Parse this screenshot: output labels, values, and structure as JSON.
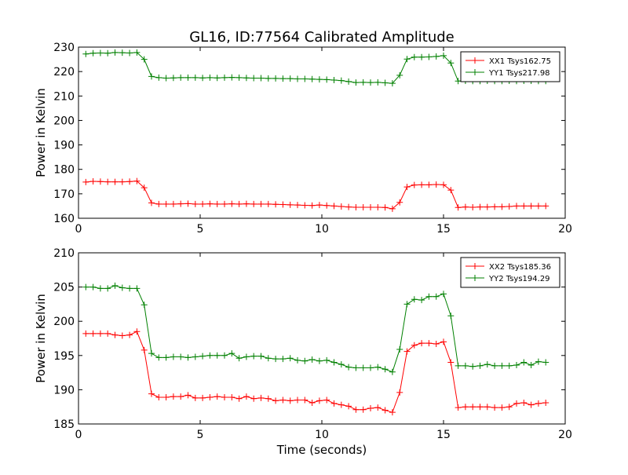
{
  "title": "GL16, ID:77564 Calibrated Amplitude",
  "xlabel": "Time (seconds)",
  "chart_data": [
    {
      "type": "line",
      "title": "GL16, ID:77564 Calibrated Amplitude",
      "xlabel": "",
      "ylabel": "Power in Kelvin",
      "xlim": [
        0,
        20
      ],
      "ylim": [
        160,
        230
      ],
      "xticks": [
        0,
        5,
        10,
        15,
        20
      ],
      "yticks": [
        160,
        170,
        180,
        190,
        200,
        210,
        220,
        230
      ],
      "grid": false,
      "legend_position": "top-right",
      "series": [
        {
          "name": "XX1 Tsys162.75",
          "color": "#ff0000",
          "x": [
            0.3,
            0.6,
            0.9,
            1.2,
            1.5,
            1.8,
            2.1,
            2.4,
            2.7,
            3.0,
            3.3,
            3.6,
            3.9,
            4.2,
            4.5,
            4.8,
            5.1,
            5.4,
            5.7,
            6.0,
            6.3,
            6.6,
            6.9,
            7.2,
            7.5,
            7.8,
            8.1,
            8.4,
            8.7,
            9.0,
            9.3,
            9.6,
            9.9,
            10.2,
            10.5,
            10.8,
            11.1,
            11.4,
            11.7,
            12.0,
            12.3,
            12.6,
            12.9,
            13.2,
            13.5,
            13.8,
            14.1,
            14.4,
            14.7,
            15.0,
            15.3,
            15.6,
            15.9,
            16.2,
            16.5,
            16.8,
            17.1,
            17.4,
            17.7,
            18.0,
            18.3,
            18.6,
            18.9,
            19.2
          ],
          "y": [
            174.8,
            175.1,
            175.0,
            174.9,
            174.9,
            174.9,
            175.0,
            175.2,
            172.5,
            166.3,
            165.8,
            165.8,
            165.8,
            165.9,
            166.0,
            165.8,
            165.8,
            165.9,
            165.8,
            165.8,
            165.9,
            165.8,
            165.9,
            165.8,
            165.8,
            165.8,
            165.7,
            165.6,
            165.5,
            165.4,
            165.3,
            165.2,
            165.4,
            165.2,
            165.0,
            164.8,
            164.6,
            164.5,
            164.5,
            164.5,
            164.5,
            164.4,
            163.9,
            166.5,
            172.8,
            173.6,
            173.7,
            173.7,
            173.8,
            173.7,
            171.5,
            164.4,
            164.6,
            164.5,
            164.6,
            164.6,
            164.7,
            164.7,
            164.8,
            165.0,
            165.0,
            165.0,
            165.0,
            165.0
          ]
        },
        {
          "name": "YY1 Tsys217.98",
          "color": "#008000",
          "x": [
            0.3,
            0.6,
            0.9,
            1.2,
            1.5,
            1.8,
            2.1,
            2.4,
            2.7,
            3.0,
            3.3,
            3.6,
            3.9,
            4.2,
            4.5,
            4.8,
            5.1,
            5.4,
            5.7,
            6.0,
            6.3,
            6.6,
            6.9,
            7.2,
            7.5,
            7.8,
            8.1,
            8.4,
            8.7,
            9.0,
            9.3,
            9.6,
            9.9,
            10.2,
            10.5,
            10.8,
            11.1,
            11.4,
            11.7,
            12.0,
            12.3,
            12.6,
            12.9,
            13.2,
            13.5,
            13.8,
            14.1,
            14.4,
            14.7,
            15.0,
            15.3,
            15.6,
            15.9,
            16.2,
            16.5,
            16.8,
            17.1,
            17.4,
            17.7,
            18.0,
            18.3,
            18.6,
            18.9,
            19.2
          ],
          "y": [
            227.2,
            227.5,
            227.6,
            227.5,
            227.8,
            227.7,
            227.6,
            227.8,
            225.0,
            218.0,
            217.5,
            217.3,
            217.4,
            217.5,
            217.5,
            217.5,
            217.4,
            217.5,
            217.4,
            217.5,
            217.6,
            217.5,
            217.4,
            217.3,
            217.3,
            217.2,
            217.2,
            217.1,
            217.1,
            217.0,
            217.0,
            216.9,
            216.8,
            216.7,
            216.5,
            216.3,
            215.9,
            215.5,
            215.6,
            215.5,
            215.6,
            215.4,
            215.2,
            218.5,
            225.1,
            225.9,
            225.9,
            226.0,
            226.2,
            226.5,
            223.5,
            216.1,
            216.2,
            216.1,
            216.1,
            216.2,
            216.1,
            216.1,
            216.2,
            216.1,
            216.2,
            216.2,
            216.1,
            216.1
          ]
        }
      ]
    },
    {
      "type": "line",
      "title": "",
      "xlabel": "Time (seconds)",
      "ylabel": "Power in Kelvin",
      "xlim": [
        0,
        20
      ],
      "ylim": [
        185,
        210
      ],
      "xticks": [
        0,
        5,
        10,
        15,
        20
      ],
      "yticks": [
        185,
        190,
        195,
        200,
        205,
        210
      ],
      "grid": false,
      "legend_position": "top-right",
      "series": [
        {
          "name": "XX2 Tsys185.36",
          "color": "#ff0000",
          "x": [
            0.3,
            0.6,
            0.9,
            1.2,
            1.5,
            1.8,
            2.1,
            2.4,
            2.7,
            3.0,
            3.3,
            3.6,
            3.9,
            4.2,
            4.5,
            4.8,
            5.1,
            5.4,
            5.7,
            6.0,
            6.3,
            6.6,
            6.9,
            7.2,
            7.5,
            7.8,
            8.1,
            8.4,
            8.7,
            9.0,
            9.3,
            9.6,
            9.9,
            10.2,
            10.5,
            10.8,
            11.1,
            11.4,
            11.7,
            12.0,
            12.3,
            12.6,
            12.9,
            13.2,
            13.5,
            13.8,
            14.1,
            14.4,
            14.7,
            15.0,
            15.3,
            15.6,
            15.9,
            16.2,
            16.5,
            16.8,
            17.1,
            17.4,
            17.7,
            18.0,
            18.3,
            18.6,
            18.9,
            19.2
          ],
          "y": [
            198.2,
            198.2,
            198.2,
            198.2,
            198.0,
            197.9,
            198.0,
            198.5,
            195.8,
            189.4,
            188.9,
            188.9,
            189.0,
            189.0,
            189.2,
            188.8,
            188.8,
            188.9,
            189.0,
            188.9,
            188.9,
            188.7,
            189.0,
            188.7,
            188.8,
            188.7,
            188.4,
            188.5,
            188.4,
            188.5,
            188.5,
            188.1,
            188.4,
            188.5,
            188.0,
            187.8,
            187.6,
            187.1,
            187.1,
            187.3,
            187.4,
            187.0,
            186.7,
            189.6,
            195.6,
            196.5,
            196.8,
            196.8,
            196.7,
            197.0,
            194.0,
            187.4,
            187.5,
            187.5,
            187.5,
            187.5,
            187.4,
            187.4,
            187.5,
            188.0,
            188.1,
            187.8,
            188.0,
            188.1
          ]
        },
        {
          "name": "YY2 Tsys194.29",
          "color": "#008000",
          "x": [
            0.3,
            0.6,
            0.9,
            1.2,
            1.5,
            1.8,
            2.1,
            2.4,
            2.7,
            3.0,
            3.3,
            3.6,
            3.9,
            4.2,
            4.5,
            4.8,
            5.1,
            5.4,
            5.7,
            6.0,
            6.3,
            6.6,
            6.9,
            7.2,
            7.5,
            7.8,
            8.1,
            8.4,
            8.7,
            9.0,
            9.3,
            9.6,
            9.9,
            10.2,
            10.5,
            10.8,
            11.1,
            11.4,
            11.7,
            12.0,
            12.3,
            12.6,
            12.9,
            13.2,
            13.5,
            13.8,
            14.1,
            14.4,
            14.7,
            15.0,
            15.3,
            15.6,
            15.9,
            16.2,
            16.5,
            16.8,
            17.1,
            17.4,
            17.7,
            18.0,
            18.3,
            18.6,
            18.9,
            19.2
          ],
          "y": [
            205.0,
            205.0,
            204.8,
            204.8,
            205.2,
            204.9,
            204.8,
            204.8,
            202.4,
            195.3,
            194.7,
            194.7,
            194.8,
            194.8,
            194.7,
            194.8,
            194.9,
            195.0,
            195.0,
            195.0,
            195.3,
            194.6,
            194.8,
            194.9,
            194.9,
            194.6,
            194.5,
            194.5,
            194.6,
            194.3,
            194.2,
            194.4,
            194.2,
            194.3,
            194.0,
            193.7,
            193.3,
            193.2,
            193.2,
            193.2,
            193.3,
            193.0,
            192.6,
            195.9,
            202.5,
            203.2,
            203.1,
            203.6,
            203.6,
            204.0,
            200.8,
            193.5,
            193.5,
            193.4,
            193.5,
            193.7,
            193.5,
            193.5,
            193.5,
            193.6,
            194.0,
            193.6,
            194.1,
            194.0
          ]
        }
      ]
    }
  ]
}
